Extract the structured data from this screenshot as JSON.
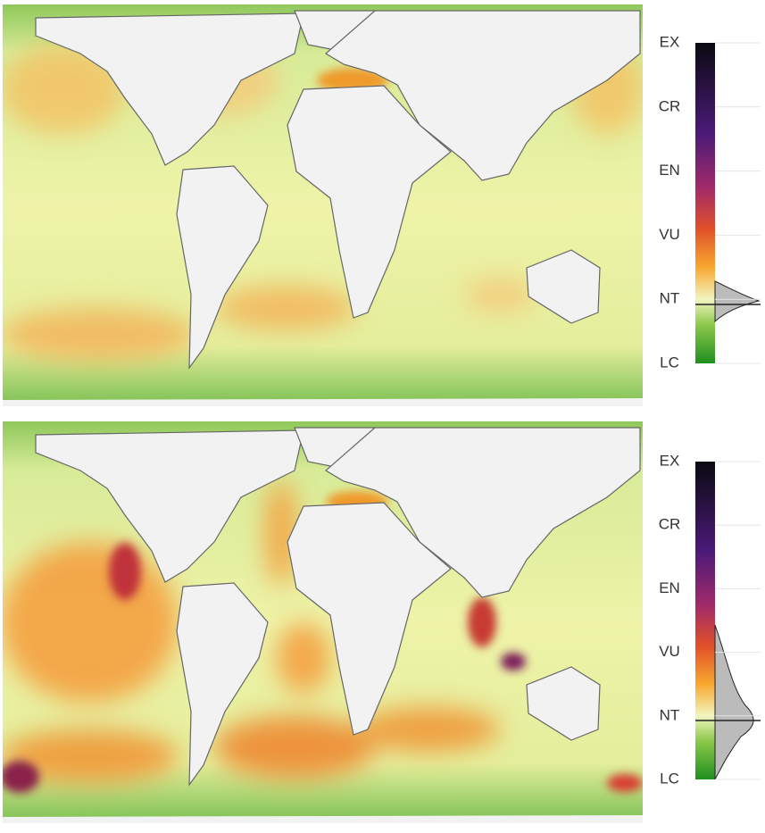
{
  "panels": [
    {
      "scale_labels": [
        "EX",
        "CR",
        "EN",
        "VU",
        "NT",
        "LC"
      ]
    },
    {
      "scale_labels": [
        "EX",
        "CR",
        "EN",
        "VU",
        "NT",
        "LC"
      ]
    }
  ]
}
